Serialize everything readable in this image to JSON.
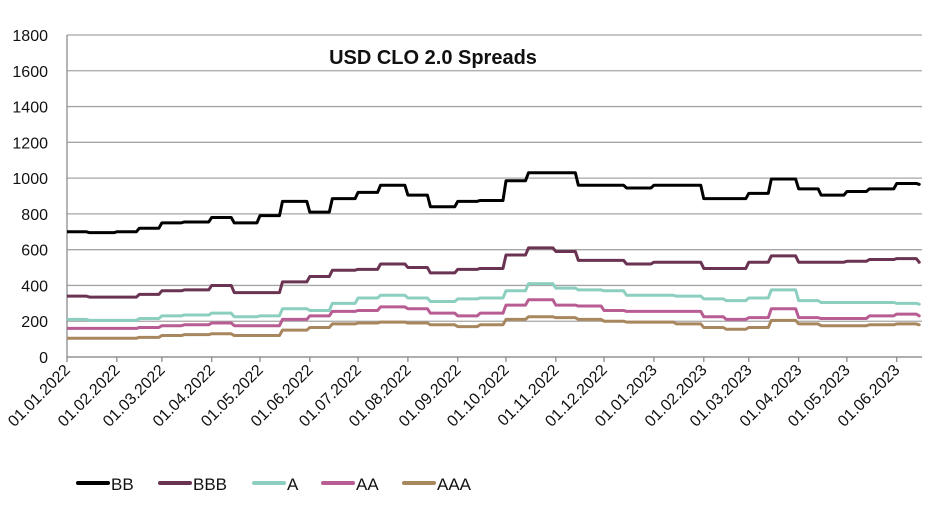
{
  "chart_data": {
    "type": "line",
    "title": "USD CLO 2.0 Spreads",
    "xlabel": "",
    "ylabel": "",
    "ylim": [
      0,
      1800
    ],
    "yticks": [
      0,
      200,
      400,
      600,
      800,
      1000,
      1200,
      1400,
      1600,
      1800
    ],
    "grid": true,
    "legend_position": "bottom-left",
    "xtick_labels": [
      "01.01.2022",
      "01.02.2022",
      "01.03.2022",
      "01.04.2022",
      "01.05.2022",
      "01.06.2022",
      "01.07.2022",
      "01.08.2022",
      "01.09.2022",
      "01.10.2022",
      "01.11.2022",
      "01.12.2022",
      "01.01.2023",
      "01.02.2023",
      "01.03.2023",
      "01.04.2023",
      "01.05.2023",
      "01.06.2023"
    ],
    "x": [
      "01.01.2022",
      "15.01.2022",
      "01.02.2022",
      "15.02.2022",
      "01.03.2022",
      "15.03.2022",
      "01.04.2022",
      "15.04.2022",
      "01.05.2022",
      "15.05.2022",
      "01.06.2022",
      "15.06.2022",
      "01.07.2022",
      "15.07.2022",
      "01.08.2022",
      "15.08.2022",
      "01.09.2022",
      "15.09.2022",
      "01.10.2022",
      "15.10.2022",
      "01.11.2022",
      "15.11.2022",
      "01.12.2022",
      "15.12.2022",
      "01.01.2023",
      "15.01.2023",
      "01.02.2023",
      "15.02.2023",
      "01.03.2023",
      "15.03.2023",
      "01.04.2023",
      "15.04.2023",
      "01.05.2023",
      "15.05.2023",
      "01.06.2023",
      "15.06.2023"
    ],
    "x_end": "16.06.2023",
    "series": [
      {
        "name": "BB",
        "color": "#000000",
        "values": [
          700,
          695,
          700,
          720,
          750,
          755,
          780,
          750,
          790,
          870,
          810,
          885,
          920,
          960,
          905,
          840,
          870,
          875,
          985,
          1030,
          1030,
          960,
          960,
          945,
          960,
          960,
          885,
          885,
          915,
          995,
          940,
          905,
          925,
          940,
          970,
          965
        ]
      },
      {
        "name": "BBB",
        "color": "#6b3352",
        "values": [
          340,
          335,
          335,
          350,
          370,
          375,
          400,
          360,
          360,
          420,
          450,
          485,
          490,
          520,
          500,
          470,
          490,
          495,
          570,
          610,
          590,
          540,
          540,
          520,
          530,
          530,
          495,
          495,
          530,
          565,
          530,
          530,
          535,
          545,
          550,
          530
        ]
      },
      {
        "name": "A",
        "color": "#8ccfc0",
        "values": [
          210,
          205,
          205,
          215,
          230,
          235,
          245,
          225,
          230,
          270,
          260,
          300,
          330,
          345,
          330,
          310,
          325,
          330,
          370,
          410,
          385,
          375,
          370,
          345,
          345,
          340,
          325,
          315,
          330,
          375,
          315,
          305,
          305,
          305,
          300,
          295
        ]
      },
      {
        "name": "AA",
        "color": "#b85c94",
        "values": [
          160,
          160,
          160,
          165,
          175,
          180,
          190,
          175,
          175,
          210,
          230,
          255,
          260,
          280,
          270,
          245,
          230,
          245,
          290,
          320,
          290,
          285,
          260,
          255,
          255,
          255,
          225,
          210,
          220,
          270,
          220,
          215,
          215,
          230,
          240,
          230
        ]
      },
      {
        "name": "AAA",
        "color": "#a8875e",
        "values": [
          105,
          105,
          105,
          110,
          120,
          125,
          130,
          120,
          120,
          150,
          165,
          185,
          190,
          195,
          190,
          180,
          170,
          180,
          210,
          225,
          220,
          210,
          200,
          195,
          195,
          185,
          165,
          155,
          165,
          205,
          185,
          175,
          175,
          180,
          185,
          180
        ]
      }
    ]
  }
}
